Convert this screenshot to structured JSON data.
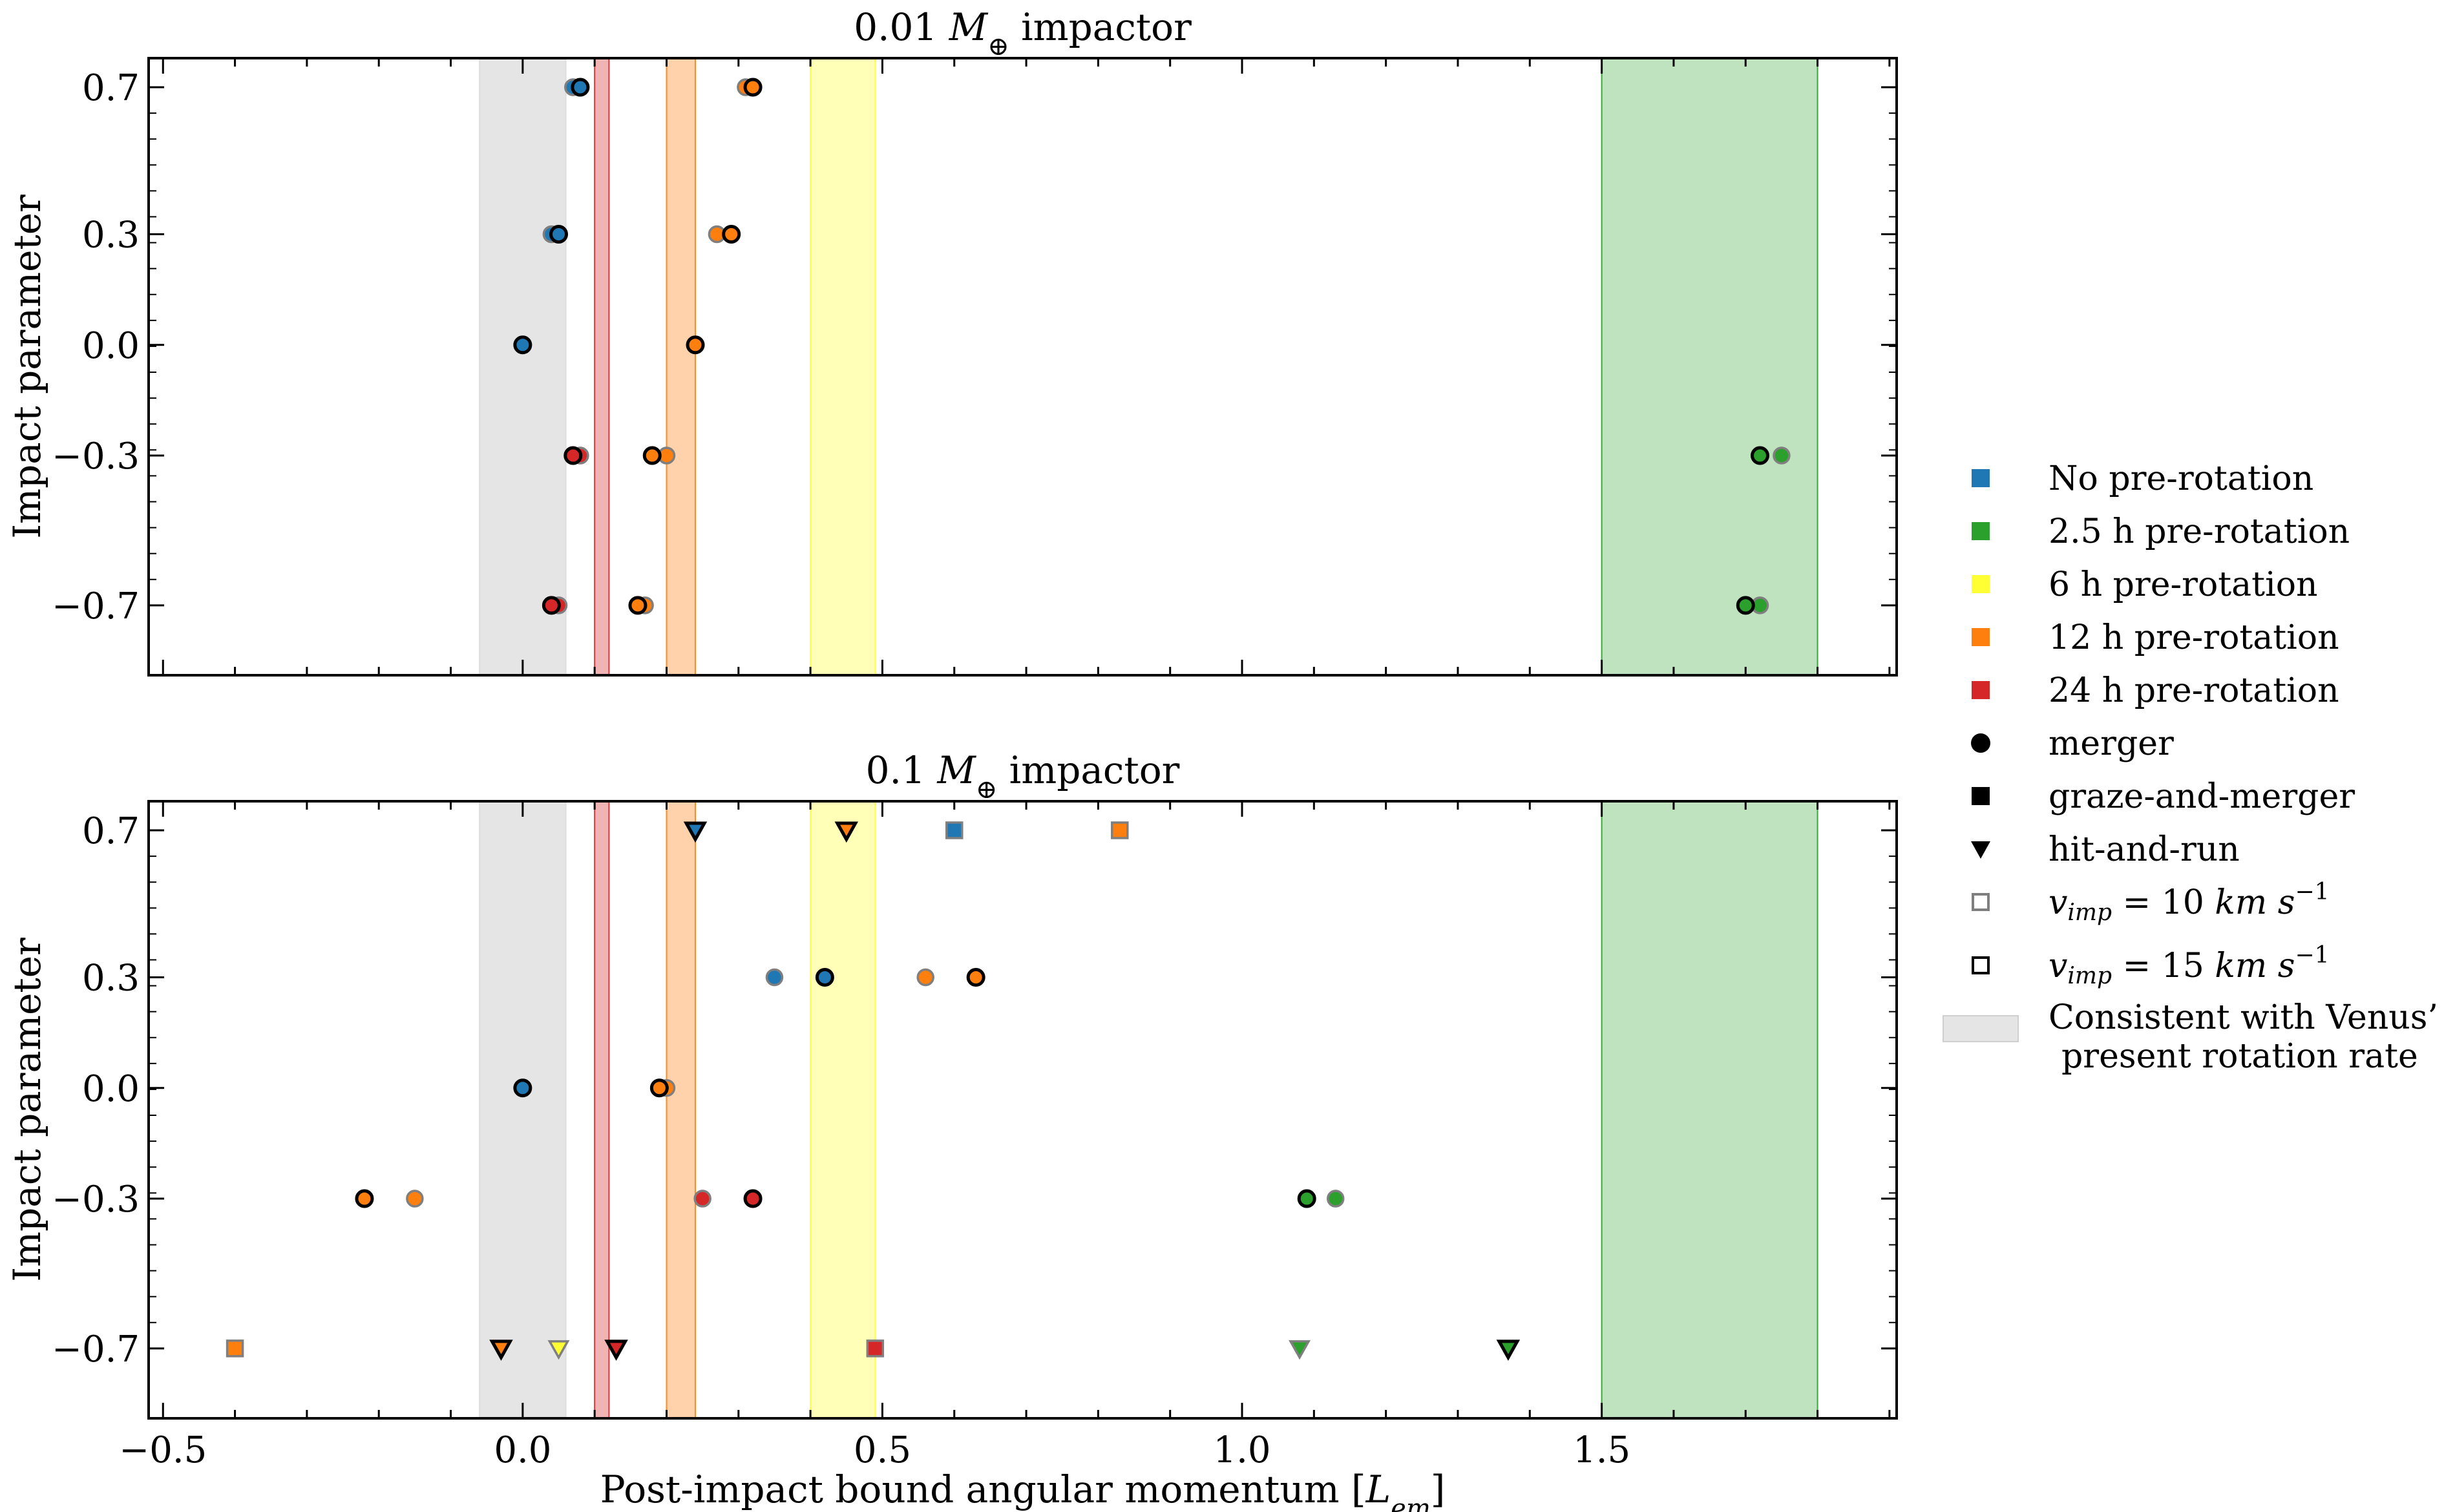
{
  "chart_data": {
    "type": "scatter",
    "xlabel": "Post-impact bound angular momentum [L_em]",
    "xlim": [
      -0.52,
      1.91
    ],
    "xticks": [
      -0.5,
      0.0,
      0.5,
      1.0,
      1.5
    ],
    "xtick_labels": [
      "−0.5",
      "0.0",
      "0.5",
      "1.0",
      "1.5"
    ],
    "ylabel": "Impact parameter",
    "ycats": [
      0.7,
      0.3,
      0.0,
      -0.3,
      -0.7
    ],
    "ytick_labels": [
      "0.7",
      "0.3",
      "0.0",
      "−0.3",
      "−0.7"
    ],
    "bands": [
      {
        "name": "venus",
        "x0": -0.06,
        "x1": 0.06,
        "color": "#dcdcdc",
        "opacity": 0.75
      },
      {
        "name": "24h",
        "x0": 0.1,
        "x1": 0.12,
        "color": "#d62728",
        "opacity": 0.35
      },
      {
        "name": "12h",
        "x0": 0.2,
        "x1": 0.24,
        "color": "#ff7f0e",
        "opacity": 0.35
      },
      {
        "name": "6h",
        "x0": 0.4,
        "x1": 0.49,
        "color": "#ffff33",
        "opacity": 0.35
      },
      {
        "name": "2.5h",
        "x0": 1.5,
        "x1": 1.8,
        "color": "#2ca02c",
        "opacity": 0.3
      }
    ],
    "colors": {
      "none": "#1f77b4",
      "2.5h": "#2ca02c",
      "6h": "#ffff33",
      "12h": "#ff7f0e",
      "24h": "#d62728"
    },
    "panels": [
      {
        "title_pre": "0.01 ",
        "title_post": " impactor",
        "points": [
          {
            "x": 0.07,
            "y": 0.7,
            "rot": "none",
            "type": "merger",
            "v": 10
          },
          {
            "x": 0.08,
            "y": 0.7,
            "rot": "none",
            "type": "merger",
            "v": 15
          },
          {
            "x": 0.31,
            "y": 0.7,
            "rot": "12h",
            "type": "merger",
            "v": 10
          },
          {
            "x": 0.32,
            "y": 0.7,
            "rot": "12h",
            "type": "merger",
            "v": 15
          },
          {
            "x": 0.04,
            "y": 0.3,
            "rot": "none",
            "type": "merger",
            "v": 10
          },
          {
            "x": 0.05,
            "y": 0.3,
            "rot": "none",
            "type": "merger",
            "v": 15
          },
          {
            "x": 0.27,
            "y": 0.3,
            "rot": "12h",
            "type": "merger",
            "v": 10
          },
          {
            "x": 0.29,
            "y": 0.3,
            "rot": "12h",
            "type": "merger",
            "v": 15
          },
          {
            "x": 0.0,
            "y": 0.0,
            "rot": "none",
            "type": "merger",
            "v": 15
          },
          {
            "x": 0.24,
            "y": 0.0,
            "rot": "12h",
            "type": "merger",
            "v": 15
          },
          {
            "x": 0.08,
            "y": -0.3,
            "rot": "24h",
            "type": "merger",
            "v": 10
          },
          {
            "x": 0.07,
            "y": -0.3,
            "rot": "24h",
            "type": "merger",
            "v": 15
          },
          {
            "x": 0.2,
            "y": -0.3,
            "rot": "12h",
            "type": "merger",
            "v": 10
          },
          {
            "x": 0.18,
            "y": -0.3,
            "rot": "12h",
            "type": "merger",
            "v": 15
          },
          {
            "x": 1.75,
            "y": -0.3,
            "rot": "2.5h",
            "type": "merger",
            "v": 10
          },
          {
            "x": 1.72,
            "y": -0.3,
            "rot": "2.5h",
            "type": "merger",
            "v": 15
          },
          {
            "x": 0.05,
            "y": -0.7,
            "rot": "24h",
            "type": "merger",
            "v": 10
          },
          {
            "x": 0.04,
            "y": -0.7,
            "rot": "24h",
            "type": "merger",
            "v": 15
          },
          {
            "x": 0.17,
            "y": -0.7,
            "rot": "12h",
            "type": "merger",
            "v": 10
          },
          {
            "x": 0.16,
            "y": -0.7,
            "rot": "12h",
            "type": "merger",
            "v": 15
          },
          {
            "x": 1.72,
            "y": -0.7,
            "rot": "2.5h",
            "type": "merger",
            "v": 10
          },
          {
            "x": 1.7,
            "y": -0.7,
            "rot": "2.5h",
            "type": "merger",
            "v": 15
          }
        ]
      },
      {
        "title_pre": "0.1 ",
        "title_post": " impactor",
        "points": [
          {
            "x": 0.24,
            "y": 0.7,
            "rot": "none",
            "type": "hit-and-run",
            "v": 15
          },
          {
            "x": 0.45,
            "y": 0.7,
            "rot": "12h",
            "type": "hit-and-run",
            "v": 15
          },
          {
            "x": 0.6,
            "y": 0.7,
            "rot": "none",
            "type": "graze-and-merger",
            "v": 10
          },
          {
            "x": 0.83,
            "y": 0.7,
            "rot": "12h",
            "type": "graze-and-merger",
            "v": 10
          },
          {
            "x": 0.35,
            "y": 0.3,
            "rot": "none",
            "type": "merger",
            "v": 10
          },
          {
            "x": 0.42,
            "y": 0.3,
            "rot": "none",
            "type": "merger",
            "v": 15
          },
          {
            "x": 0.56,
            "y": 0.3,
            "rot": "12h",
            "type": "merger",
            "v": 10
          },
          {
            "x": 0.63,
            "y": 0.3,
            "rot": "12h",
            "type": "merger",
            "v": 15
          },
          {
            "x": 0.0,
            "y": 0.0,
            "rot": "none",
            "type": "merger",
            "v": 15
          },
          {
            "x": 0.2,
            "y": 0.0,
            "rot": "12h",
            "type": "merger",
            "v": 10
          },
          {
            "x": 0.19,
            "y": 0.0,
            "rot": "12h",
            "type": "merger",
            "v": 15
          },
          {
            "x": -0.22,
            "y": -0.3,
            "rot": "12h",
            "type": "merger",
            "v": 15
          },
          {
            "x": -0.15,
            "y": -0.3,
            "rot": "12h",
            "type": "merger",
            "v": 10
          },
          {
            "x": 0.25,
            "y": -0.3,
            "rot": "24h",
            "type": "merger",
            "v": 10
          },
          {
            "x": 0.32,
            "y": -0.3,
            "rot": "24h",
            "type": "merger",
            "v": 15
          },
          {
            "x": 1.09,
            "y": -0.3,
            "rot": "2.5h",
            "type": "merger",
            "v": 15
          },
          {
            "x": 1.13,
            "y": -0.3,
            "rot": "2.5h",
            "type": "merger",
            "v": 10
          },
          {
            "x": -0.4,
            "y": -0.7,
            "rot": "12h",
            "type": "graze-and-merger",
            "v": 10
          },
          {
            "x": -0.03,
            "y": -0.7,
            "rot": "12h",
            "type": "hit-and-run",
            "v": 15
          },
          {
            "x": 0.05,
            "y": -0.7,
            "rot": "6h",
            "type": "hit-and-run",
            "v": 10
          },
          {
            "x": 0.13,
            "y": -0.7,
            "rot": "24h",
            "type": "hit-and-run",
            "v": 15
          },
          {
            "x": 0.49,
            "y": -0.7,
            "rot": "24h",
            "type": "graze-and-merger",
            "v": 10
          },
          {
            "x": 1.08,
            "y": -0.7,
            "rot": "2.5h",
            "type": "hit-and-run",
            "v": 10
          },
          {
            "x": 1.37,
            "y": -0.7,
            "rot": "2.5h",
            "type": "hit-and-run",
            "v": 15
          }
        ]
      }
    ],
    "legend": [
      {
        "kind": "color",
        "key": "none",
        "label": "No pre-rotation"
      },
      {
        "kind": "color",
        "key": "2.5h",
        "label": "2.5 h pre-rotation"
      },
      {
        "kind": "color",
        "key": "6h",
        "label": "6 h pre-rotation"
      },
      {
        "kind": "color",
        "key": "12h",
        "label": "12 h pre-rotation"
      },
      {
        "kind": "color",
        "key": "24h",
        "label": "24 h pre-rotation"
      },
      {
        "kind": "marker",
        "key": "merger",
        "label": "merger"
      },
      {
        "kind": "marker",
        "key": "graze-and-merger",
        "label": "graze-and-merger"
      },
      {
        "kind": "marker",
        "key": "hit-and-run",
        "label": "hit-and-run"
      },
      {
        "kind": "velocity",
        "key": 10,
        "label": "v_imp = 10 km s^-1"
      },
      {
        "kind": "velocity",
        "key": 15,
        "label": "v_imp = 15 km s^-1"
      },
      {
        "kind": "band",
        "key": "venus",
        "label": "Consistent with Venus’ present rotation rate"
      }
    ]
  }
}
